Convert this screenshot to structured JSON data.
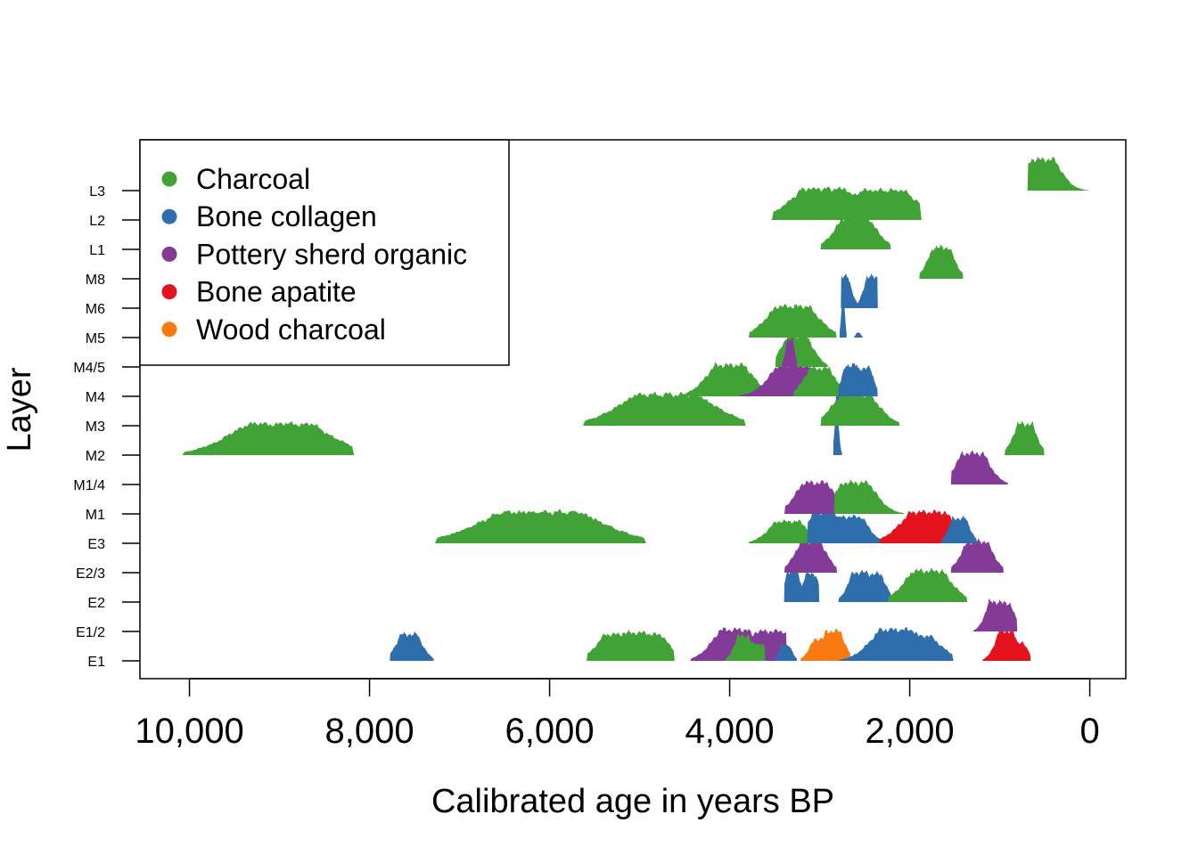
{
  "chart_data": {
    "type": "area",
    "xlabel": "Calibrated age in years BP",
    "ylabel": "Layer",
    "xlim": [
      10550,
      -400
    ],
    "x_reversed": true,
    "x_ticks": [
      10000,
      8000,
      6000,
      4000,
      2000,
      0
    ],
    "x_tick_labels": [
      "10,000",
      "8,000",
      "6,000",
      "4,000",
      "2,000",
      "0"
    ],
    "categories": [
      "E1",
      "E1/2",
      "E2",
      "E2/3",
      "E3",
      "M1",
      "M1/4",
      "M2",
      "M3",
      "M4",
      "M4/5",
      "M5",
      "M6",
      "M8",
      "L1",
      "L2",
      "L3"
    ],
    "legend": {
      "position": "top-left"
    },
    "grid": false,
    "series": [
      {
        "name": "Charcoal",
        "color": "#41a335"
      },
      {
        "name": "Bone collagen",
        "color": "#2f6ead"
      },
      {
        "name": "Pottery sherd organic",
        "color": "#843b98"
      },
      {
        "name": "Bone apatite",
        "color": "#e3121d"
      },
      {
        "name": "Wood charcoal",
        "color": "#f97a11"
      }
    ],
    "distributions": [
      {
        "layer": "E1",
        "series": "Bone collagen",
        "range": [
          7780,
          7280
        ],
        "peaks": [
          [
            7560,
            0.85
          ]
        ]
      },
      {
        "layer": "E1",
        "series": "Charcoal",
        "range": [
          5600,
          4600
        ],
        "peaks": [
          [
            5250,
            0.85
          ],
          [
            5050,
            0.9
          ],
          [
            4900,
            0.85
          ]
        ]
      },
      {
        "layer": "E1",
        "series": "Pottery sherd organic",
        "range": [
          4450,
          3350
        ],
        "peaks": [
          [
            3950,
            1.0
          ],
          [
            3550,
            0.95
          ]
        ]
      },
      {
        "layer": "E1",
        "series": "Charcoal",
        "range": [
          4050,
          3600
        ],
        "peaks": [
          [
            3850,
            0.8
          ],
          [
            3700,
            0.55
          ]
        ]
      },
      {
        "layer": "E1",
        "series": "Bone collagen",
        "range": [
          3500,
          3250
        ],
        "peaks": [
          [
            3380,
            0.5
          ]
        ]
      },
      {
        "layer": "E1",
        "series": "Wood charcoal",
        "range": [
          3220,
          2650
        ],
        "peaks": [
          [
            2980,
            0.7
          ],
          [
            2850,
            0.95
          ]
        ]
      },
      {
        "layer": "E1",
        "series": "Bone collagen",
        "range": [
          2800,
          1500
        ],
        "peaks": [
          [
            2150,
            1.0
          ],
          [
            1950,
            0.8
          ]
        ]
      },
      {
        "layer": "E1",
        "series": "Bone apatite",
        "range": [
          1200,
          650
        ],
        "peaks": [
          [
            930,
            0.95
          ],
          [
            820,
            0.6
          ]
        ]
      },
      {
        "layer": "E1/2",
        "series": "Pottery sherd organic",
        "range": [
          1300,
          800
        ],
        "peaks": [
          [
            1050,
            0.95
          ],
          [
            950,
            0.9
          ]
        ]
      },
      {
        "layer": "E2",
        "series": "Bone collagen",
        "range": [
          3400,
          3000
        ],
        "peaks": [
          [
            3300,
            1.0
          ],
          [
            3100,
            0.9
          ]
        ]
      },
      {
        "layer": "E2",
        "series": "Bone collagen",
        "range": [
          2800,
          2200
        ],
        "peaks": [
          [
            2550,
            0.95
          ],
          [
            2400,
            0.9
          ]
        ]
      },
      {
        "layer": "E2",
        "series": "Charcoal",
        "range": [
          2250,
          1350
        ],
        "peaks": [
          [
            1800,
            1.0
          ]
        ]
      },
      {
        "layer": "E2/3",
        "series": "Pottery sherd organic",
        "range": [
          3400,
          2800
        ],
        "peaks": [
          [
            3100,
            1.0
          ]
        ]
      },
      {
        "layer": "E2/3",
        "series": "Pottery sherd organic",
        "range": [
          1550,
          950
        ],
        "peaks": [
          [
            1250,
            1.0
          ]
        ]
      },
      {
        "layer": "E3",
        "series": "Charcoal",
        "range": [
          7300,
          4900
        ],
        "peaks": [
          [
            6100,
            1.0
          ]
        ]
      },
      {
        "layer": "E3",
        "series": "Charcoal",
        "range": [
          3800,
          3050
        ],
        "peaks": [
          [
            3350,
            0.7
          ]
        ]
      },
      {
        "layer": "E3",
        "series": "Bone collagen",
        "range": [
          3150,
          2300
        ],
        "peaks": [
          [
            2950,
            1.0
          ],
          [
            2650,
            0.85
          ]
        ]
      },
      {
        "layer": "E3",
        "series": "Bone apatite",
        "range": [
          2350,
          1300
        ],
        "peaks": [
          [
            1800,
            1.0
          ]
        ]
      },
      {
        "layer": "E3",
        "series": "Bone collagen",
        "range": [
          1650,
          1250
        ],
        "peaks": [
          [
            1450,
            0.8
          ]
        ]
      },
      {
        "layer": "M1",
        "series": "Pottery sherd organic",
        "range": [
          3400,
          2650
        ],
        "peaks": [
          [
            3050,
            1.0
          ]
        ]
      },
      {
        "layer": "M1",
        "series": "Charcoal",
        "range": [
          2850,
          2050
        ],
        "peaks": [
          [
            2600,
            1.0
          ]
        ]
      },
      {
        "layer": "M1/4",
        "series": "Pottery sherd organic",
        "range": [
          1550,
          900
        ],
        "peaks": [
          [
            1300,
            1.0
          ]
        ]
      },
      {
        "layer": "M2",
        "series": "Charcoal",
        "range": [
          10100,
          8150
        ],
        "peaks": [
          [
            9000,
            1.0
          ]
        ]
      },
      {
        "layer": "M2",
        "series": "Bone collagen",
        "range": [
          2850,
          2750
        ],
        "peaks": [
          [
            2810,
            1.0
          ]
        ]
      },
      {
        "layer": "M2",
        "series": "Charcoal",
        "range": [
          950,
          500
        ],
        "peaks": [
          [
            720,
            1.0
          ]
        ]
      },
      {
        "layer": "M3",
        "series": "Charcoal",
        "range": [
          5650,
          3800
        ],
        "peaks": [
          [
            4700,
            1.0
          ]
        ]
      },
      {
        "layer": "M3",
        "series": "Bone collagen",
        "range": [
          2850,
          2750
        ],
        "peaks": [
          [
            2800,
            1.0
          ]
        ]
      },
      {
        "layer": "M3",
        "series": "Charcoal",
        "range": [
          3000,
          2100
        ],
        "peaks": [
          [
            2600,
            1.0
          ]
        ]
      },
      {
        "layer": "M4",
        "series": "Charcoal",
        "range": [
          4500,
          3600
        ],
        "peaks": [
          [
            4000,
            1.0
          ]
        ]
      },
      {
        "layer": "M4",
        "series": "Pottery sherd organic",
        "range": [
          3900,
          3000
        ],
        "peaks": [
          [
            3300,
            1.0
          ]
        ]
      },
      {
        "layer": "M4",
        "series": "Charcoal",
        "range": [
          3300,
          2700
        ],
        "peaks": [
          [
            3000,
            0.9
          ]
        ]
      },
      {
        "layer": "M4",
        "series": "Bone collagen",
        "range": [
          2800,
          2350
        ],
        "peaks": [
          [
            2650,
            1.0
          ],
          [
            2500,
            0.9
          ]
        ]
      },
      {
        "layer": "M4/5",
        "series": "Charcoal",
        "range": [
          3500,
          2900
        ],
        "peaks": [
          [
            3250,
            1.0
          ]
        ]
      },
      {
        "layer": "M4/5",
        "series": "Pottery sherd organic",
        "range": [
          3420,
          3250
        ],
        "peaks": [
          [
            3330,
            0.9
          ]
        ]
      },
      {
        "layer": "M5",
        "series": "Charcoal",
        "range": [
          3800,
          2800
        ],
        "peaks": [
          [
            3300,
            1.0
          ]
        ]
      },
      {
        "layer": "M5",
        "series": "Bone collagen",
        "range": [
          2780,
          2700
        ],
        "peaks": [
          [
            2740,
            1.0
          ]
        ]
      },
      {
        "layer": "M5",
        "series": "Bone collagen",
        "range": [
          2620,
          2520
        ],
        "peaks": [
          [
            2570,
            0.15
          ]
        ]
      },
      {
        "layer": "M6",
        "series": "Bone collagen",
        "range": [
          2770,
          2350
        ],
        "peaks": [
          [
            2740,
            1.0
          ],
          [
            2420,
            1.0
          ]
        ]
      },
      {
        "layer": "M8",
        "series": "Charcoal",
        "range": [
          1900,
          1400
        ],
        "peaks": [
          [
            1650,
            1.0
          ]
        ]
      },
      {
        "layer": "L1",
        "series": "Charcoal",
        "range": [
          3000,
          2200
        ],
        "peaks": [
          [
            2600,
            1.0
          ]
        ]
      },
      {
        "layer": "L2",
        "series": "Charcoal",
        "range": [
          3550,
          1850
        ],
        "peaks": [
          [
            2950,
            1.0
          ],
          [
            2300,
            0.95
          ]
        ]
      },
      {
        "layer": "L3",
        "series": "Charcoal",
        "range": [
          700,
          0
        ],
        "peaks": [
          [
            520,
            1.0
          ]
        ]
      }
    ]
  }
}
